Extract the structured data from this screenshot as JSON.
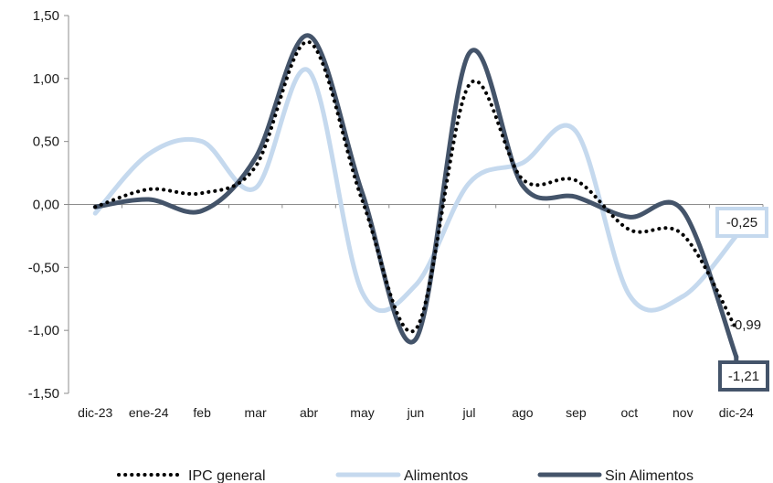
{
  "chart_data": {
    "type": "line",
    "categories": [
      "dic-23",
      "ene-24",
      "feb",
      "mar",
      "abr",
      "may",
      "jun",
      "jul",
      "ago",
      "sep",
      "oct",
      "nov",
      "dic-24"
    ],
    "ylim": [
      -1.5,
      1.5
    ],
    "yticks": [
      1.5,
      1.0,
      0.5,
      0.0,
      -0.5,
      -1.0,
      -1.5
    ],
    "ytick_labels": [
      "1,50",
      "1,00",
      "0,50",
      "0,00",
      "-0,50",
      "-1,00",
      "-1,50"
    ],
    "grid": false,
    "legend_position": "bottom",
    "series": [
      {
        "name": "IPC general",
        "key": "ipc",
        "color": "#000000",
        "style": "dotted",
        "values": [
          -0.02,
          0.12,
          0.09,
          0.3,
          1.29,
          0.03,
          -0.99,
          0.95,
          0.2,
          0.19,
          -0.2,
          -0.24,
          -0.99
        ],
        "end_label": "-0,99"
      },
      {
        "name": "Alimentos",
        "key": "alimentos",
        "color": "#c5d9ee",
        "style": "solid",
        "values": [
          -0.07,
          0.4,
          0.5,
          0.13,
          1.06,
          -0.7,
          -0.64,
          0.17,
          0.33,
          0.58,
          -0.72,
          -0.73,
          -0.25
        ],
        "end_label": "-0,25"
      },
      {
        "name": "Sin Alimentos",
        "key": "sin_alimentos",
        "color": "#44546a",
        "style": "solid",
        "values": [
          -0.02,
          0.04,
          -0.05,
          0.37,
          1.34,
          0.09,
          -1.07,
          1.2,
          0.15,
          0.06,
          -0.1,
          -0.05,
          -1.21
        ],
        "end_label": "-1,21"
      }
    ]
  }
}
